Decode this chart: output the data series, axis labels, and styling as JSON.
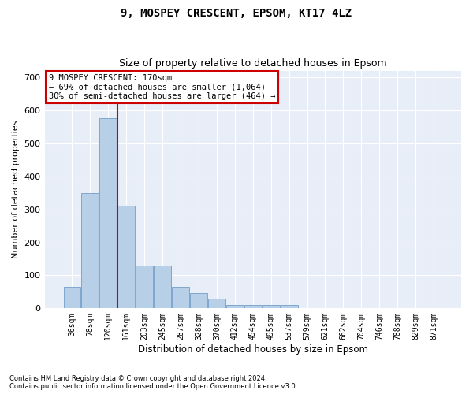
{
  "title1": "9, MOSPEY CRESCENT, EPSOM, KT17 4LZ",
  "title2": "Size of property relative to detached houses in Epsom",
  "xlabel": "Distribution of detached houses by size in Epsom",
  "ylabel": "Number of detached properties",
  "bar_color": "#b8cfe8",
  "bar_edge_color": "#6090c0",
  "background_color": "#e8eef8",
  "grid_color": "#ffffff",
  "annotation_line_color": "#cc0000",
  "annotation_box_edgecolor": "#cc0000",
  "annotation_text_line1": "9 MOSPEY CRESCENT: 170sqm",
  "annotation_text_line2": "← 69% of detached houses are smaller (1,064)",
  "annotation_text_line3": "30% of semi-detached houses are larger (464) →",
  "footnote1": "Contains HM Land Registry data © Crown copyright and database right 2024.",
  "footnote2": "Contains public sector information licensed under the Open Government Licence v3.0.",
  "categories": [
    "36sqm",
    "78sqm",
    "120sqm",
    "161sqm",
    "203sqm",
    "245sqm",
    "287sqm",
    "328sqm",
    "370sqm",
    "412sqm",
    "454sqm",
    "495sqm",
    "537sqm",
    "579sqm",
    "621sqm",
    "662sqm",
    "704sqm",
    "746sqm",
    "788sqm",
    "829sqm",
    "871sqm"
  ],
  "values": [
    65,
    350,
    575,
    310,
    130,
    130,
    65,
    45,
    30,
    10,
    10,
    10,
    10,
    0,
    0,
    0,
    0,
    0,
    0,
    0,
    0
  ],
  "ylim": [
    0,
    720
  ],
  "yticks": [
    0,
    100,
    200,
    300,
    400,
    500,
    600,
    700
  ],
  "marker_bin_index": 2.5,
  "figsize": [
    6.0,
    5.0
  ],
  "dpi": 100
}
